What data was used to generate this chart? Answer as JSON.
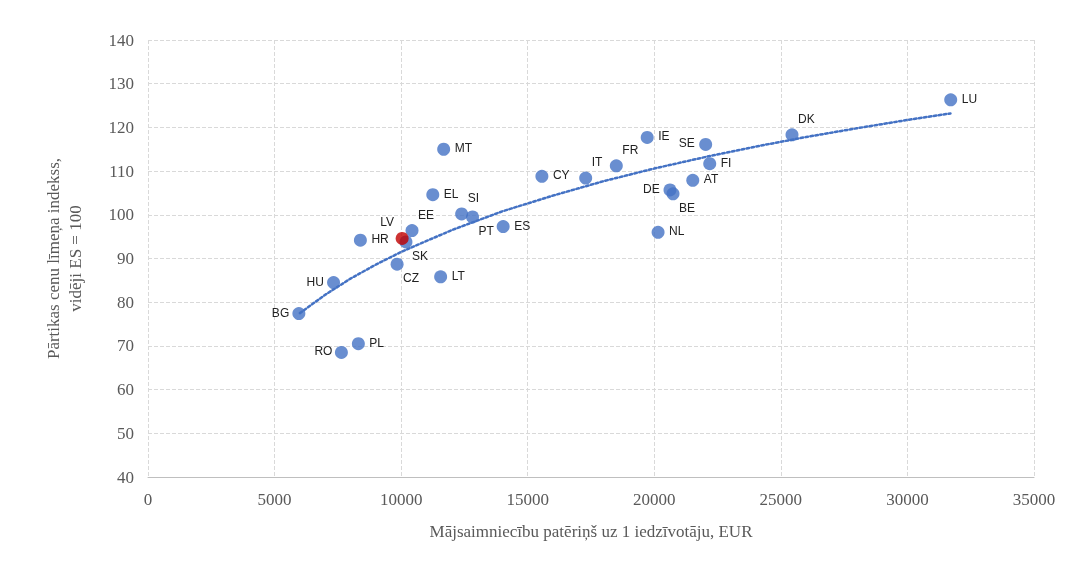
{
  "chart_data": {
    "type": "scatter",
    "xlabel": "Mājsaimniecību patēriņš uz 1 iedzīvotāju, EUR",
    "ylabel": "Pārtikas cenu līmeņa indekss,\nvidēji ES = 100",
    "xlim": [
      0,
      35000
    ],
    "xticks": [
      0,
      5000,
      10000,
      15000,
      20000,
      25000,
      30000,
      35000
    ],
    "ylim": [
      40,
      140
    ],
    "yticks": [
      40,
      50,
      60,
      70,
      80,
      90,
      100,
      110,
      120,
      130,
      140
    ],
    "grid": true,
    "marker": "circle",
    "series": [
      {
        "color": "#4472c4",
        "x": [
          5960,
          7640,
          8310,
          7330,
          8390,
          10190,
          10430,
          9840,
          11560,
          11250,
          11680,
          12390,
          12820,
          14030,
          15560,
          17290,
          18500,
          19720,
          22030,
          22190,
          21520,
          20620,
          20740,
          20150,
          25440,
          31710,
          10040
        ],
        "values": [
          77.4,
          68.5,
          70.5,
          84.5,
          94.2,
          93.8,
          96.4,
          88.7,
          85.8,
          104.6,
          115.0,
          100.2,
          99.5,
          97.3,
          108.8,
          108.4,
          111.2,
          117.7,
          116.1,
          111.7,
          107.9,
          105.7,
          104.8,
          96.0,
          118.3,
          126.3,
          94.6
        ],
        "colors": [
          "#4472c4",
          "#4472c4",
          "#4472c4",
          "#4472c4",
          "#4472c4",
          "#4472c4",
          "#4472c4",
          "#4472c4",
          "#4472c4",
          "#4472c4",
          "#4472c4",
          "#4472c4",
          "#4472c4",
          "#4472c4",
          "#4472c4",
          "#4472c4",
          "#4472c4",
          "#4472c4",
          "#4472c4",
          "#4472c4",
          "#4472c4",
          "#4472c4",
          "#4472c4",
          "#4472c4",
          "#4472c4",
          "#4472c4",
          "#c00000"
        ]
      },
      {
        "type": "line",
        "marker": "none",
        "line_style": "dotted",
        "color": "#4472c4",
        "x": [
          6000,
          7000,
          8000,
          9000,
          10000,
          12000,
          14000,
          16000,
          18000,
          20000,
          22000,
          24000,
          26000,
          28000,
          30000,
          31700
        ],
        "values": [
          77.5,
          81.7,
          85.4,
          88.6,
          91.5,
          96.5,
          100.8,
          104.4,
          107.7,
          110.6,
          113.2,
          115.6,
          117.8,
          119.8,
          121.7,
          123.2
        ]
      }
    ],
    "annotations": [
      {
        "text": "BG",
        "x": 5960,
        "y": 77.4
      },
      {
        "text": "RO",
        "x": 7640,
        "y": 68.5
      },
      {
        "text": "PL",
        "x": 8310,
        "y": 70.5
      },
      {
        "text": "HU",
        "x": 7330,
        "y": 84.5
      },
      {
        "text": "HR",
        "x": 8390,
        "y": 94.2
      },
      {
        "text": "SK",
        "x": 10190,
        "y": 93.8
      },
      {
        "text": "EE",
        "x": 10430,
        "y": 96.4
      },
      {
        "text": "CZ",
        "x": 9840,
        "y": 88.7
      },
      {
        "text": "LT",
        "x": 11560,
        "y": 85.8
      },
      {
        "text": "EL",
        "x": 11250,
        "y": 104.6
      },
      {
        "text": "MT",
        "x": 11680,
        "y": 115.0
      },
      {
        "text": "SI",
        "x": 12390,
        "y": 100.2
      },
      {
        "text": "PT",
        "x": 12820,
        "y": 99.5
      },
      {
        "text": "ES",
        "x": 14030,
        "y": 97.3
      },
      {
        "text": "CY",
        "x": 15560,
        "y": 108.8
      },
      {
        "text": "IT",
        "x": 17290,
        "y": 108.4
      },
      {
        "text": "FR",
        "x": 18500,
        "y": 111.2
      },
      {
        "text": "IE",
        "x": 19720,
        "y": 117.7
      },
      {
        "text": "SE",
        "x": 22030,
        "y": 116.1
      },
      {
        "text": "FI",
        "x": 22190,
        "y": 111.7
      },
      {
        "text": "AT",
        "x": 21520,
        "y": 107.9
      },
      {
        "text": "DE",
        "x": 20620,
        "y": 105.7
      },
      {
        "text": "BE",
        "x": 20740,
        "y": 104.8
      },
      {
        "text": "NL",
        "x": 20150,
        "y": 96.0
      },
      {
        "text": "DK",
        "x": 25440,
        "y": 118.3
      },
      {
        "text": "LU",
        "x": 31710,
        "y": 126.3
      },
      {
        "text": "LV",
        "x": 10040,
        "y": 94.6
      }
    ]
  }
}
